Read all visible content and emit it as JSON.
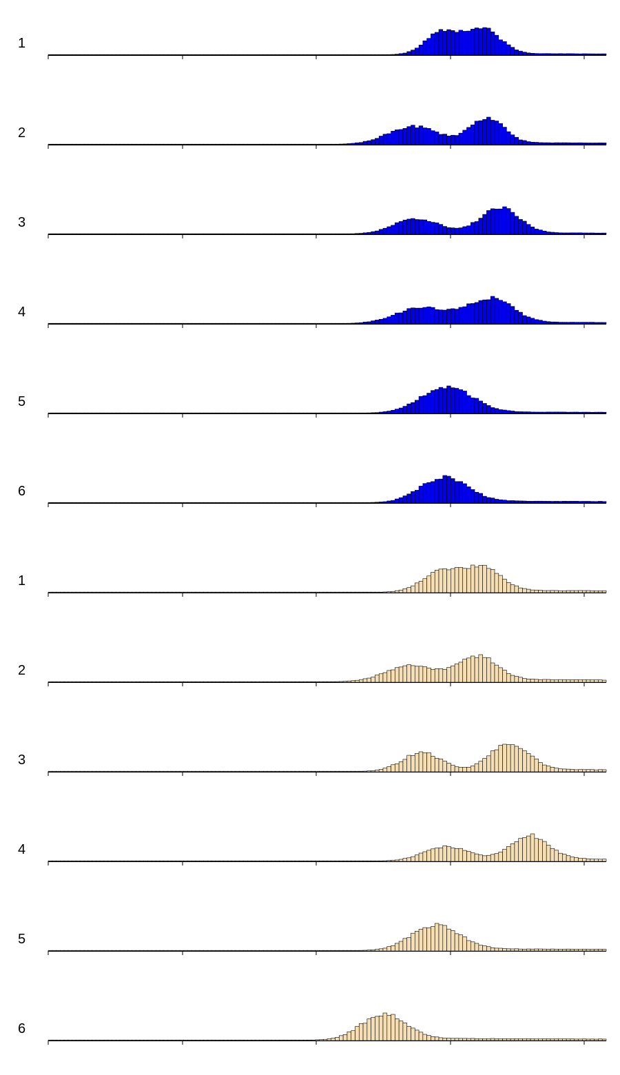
{
  "colors": {
    "series_blue": "#0000ee",
    "series_tan": "#f5deb3",
    "outline": "#000000"
  },
  "chart_data": {
    "type": "bar",
    "description": "Stacked histograms (12 panels) sharing one x axis; bin values are relative heights (tallest bin in each panel = 1.0).",
    "title": "",
    "xlabel": "",
    "ylabel": "",
    "grid": false,
    "legend": "none",
    "x_ticks": [
      "",
      "",
      "",
      "",
      ""
    ],
    "bins": 140,
    "panels": [
      {
        "label": "1",
        "color": "blue",
        "peaks": [
          [
            0.706,
            0.03,
            0.85
          ],
          [
            0.778,
            0.032,
            0.95
          ]
        ],
        "tail": 0.05,
        "seed": 11
      },
      {
        "label": "2",
        "color": "blue",
        "peaks": [
          [
            0.655,
            0.045,
            0.68
          ],
          [
            0.785,
            0.03,
            0.98
          ]
        ],
        "tail": 0.07,
        "seed": 23
      },
      {
        "label": "3",
        "color": "blue",
        "peaks": [
          [
            0.66,
            0.04,
            0.62
          ],
          [
            0.808,
            0.035,
            1.0
          ]
        ],
        "tail": 0.05,
        "seed": 37
      },
      {
        "label": "4",
        "color": "blue",
        "peaks": [
          [
            0.668,
            0.045,
            0.62
          ],
          [
            0.79,
            0.04,
            0.98
          ]
        ],
        "tail": 0.06,
        "seed": 41
      },
      {
        "label": "5",
        "color": "blue",
        "peaks": [
          [
            0.713,
            0.045,
            1.0
          ]
        ],
        "tail": 0.05,
        "seed": 53
      },
      {
        "label": "6",
        "color": "blue",
        "peaks": [
          [
            0.708,
            0.042,
            1.0
          ]
        ],
        "tail": 0.08,
        "seed": 67
      },
      {
        "label": "1",
        "color": "tan",
        "peaks": [
          [
            0.705,
            0.035,
            0.88
          ],
          [
            0.778,
            0.033,
            0.97
          ]
        ],
        "tail": 0.09,
        "seed": 71
      },
      {
        "label": "2",
        "color": "tan",
        "peaks": [
          [
            0.65,
            0.045,
            0.62
          ],
          [
            0.768,
            0.035,
            0.95
          ]
        ],
        "tail": 0.1,
        "seed": 83
      },
      {
        "label": "3",
        "color": "tan",
        "peaks": [
          [
            0.67,
            0.035,
            0.7
          ],
          [
            0.825,
            0.035,
            1.0
          ]
        ],
        "tail": 0.08,
        "seed": 97
      },
      {
        "label": "4",
        "color": "tan",
        "peaks": [
          [
            0.715,
            0.04,
            0.62
          ],
          [
            0.86,
            0.035,
            1.0
          ]
        ],
        "tail": 0.1,
        "seed": 101
      },
      {
        "label": "5",
        "color": "tan",
        "peaks": [
          [
            0.693,
            0.042,
            1.0
          ]
        ],
        "tail": 0.08,
        "seed": 113
      },
      {
        "label": "6",
        "color": "tan",
        "peaks": [
          [
            0.6,
            0.04,
            1.0
          ]
        ],
        "tail": 0.08,
        "seed": 127
      }
    ]
  }
}
